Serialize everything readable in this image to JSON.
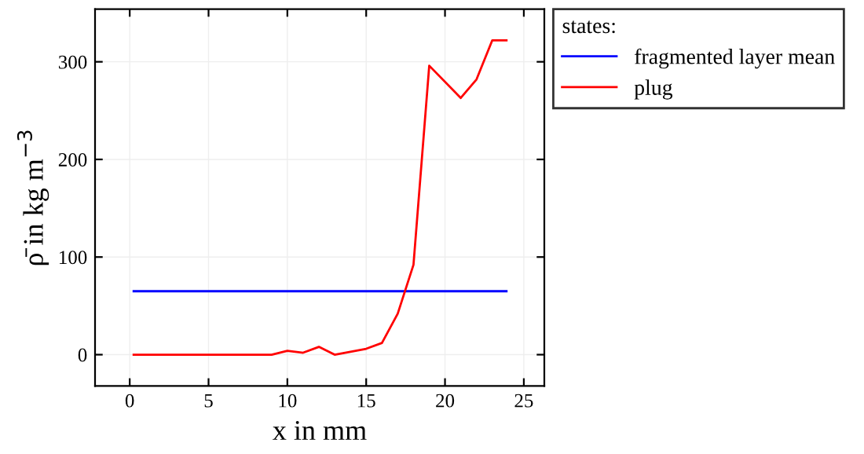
{
  "chart_data": {
    "type": "line",
    "xlabel": "x in mm",
    "ylabel": "ρ̄ in kg m$^{−3}$",
    "legend_title": "states:",
    "series": [
      {
        "name": "fragmented layer mean",
        "color": "#0000ff",
        "x": [
          0.25,
          23.9
        ],
        "values": [
          65,
          65
        ]
      },
      {
        "name": "plug",
        "color": "#ff0000",
        "x": [
          0.25,
          9,
          10,
          11,
          12,
          13,
          14,
          15,
          16,
          17,
          18,
          19,
          21,
          22,
          23,
          23.9
        ],
        "values": [
          0,
          0,
          4,
          2,
          8,
          0,
          3,
          6,
          12,
          42,
          92,
          296,
          263,
          282,
          322,
          322
        ]
      }
    ],
    "xlim": [
      -2.2,
      26.3
    ],
    "ylim": [
      -32,
      354
    ],
    "xticks": [
      0,
      5,
      10,
      15,
      20,
      25
    ],
    "yticks": [
      0,
      100,
      200,
      300
    ],
    "grid": true,
    "legend": "top right",
    "marker": "none",
    "line_style": "solid"
  }
}
